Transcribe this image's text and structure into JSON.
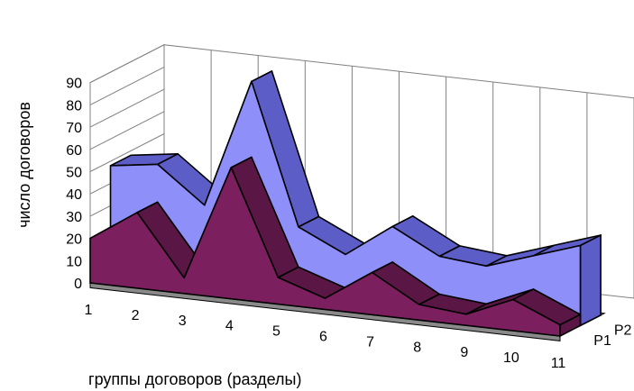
{
  "chart_data": {
    "type": "area",
    "subtype": "3d-area",
    "title": "",
    "xlabel": "группы договоров (разделы)",
    "ylabel": "число договоров",
    "categories": [
      "1",
      "2",
      "3",
      "4",
      "5",
      "6",
      "7",
      "8",
      "9",
      "10",
      "11"
    ],
    "ylim": [
      0,
      90
    ],
    "yticks": [
      0,
      10,
      20,
      30,
      40,
      50,
      60,
      70,
      80,
      90
    ],
    "grid": true,
    "series": [
      {
        "name": "P1",
        "values": [
          20,
          34,
          7,
          59,
          12,
          5,
          19,
          7,
          5,
          14,
          5
        ],
        "color": "#7c1f5e"
      },
      {
        "name": "P2",
        "values": [
          48,
          51,
          35,
          93,
          30,
          20,
          35,
          24,
          22,
          29,
          36
        ],
        "color": "#8f8ff9"
      }
    ],
    "colors": {
      "p1_front": "#7c1f5e",
      "p1_top": "#5a1645",
      "p2_front": "#8f8ff9",
      "p2_top": "#5d5dc8",
      "floor": "#b0b0b0",
      "grid": "#808080"
    }
  }
}
